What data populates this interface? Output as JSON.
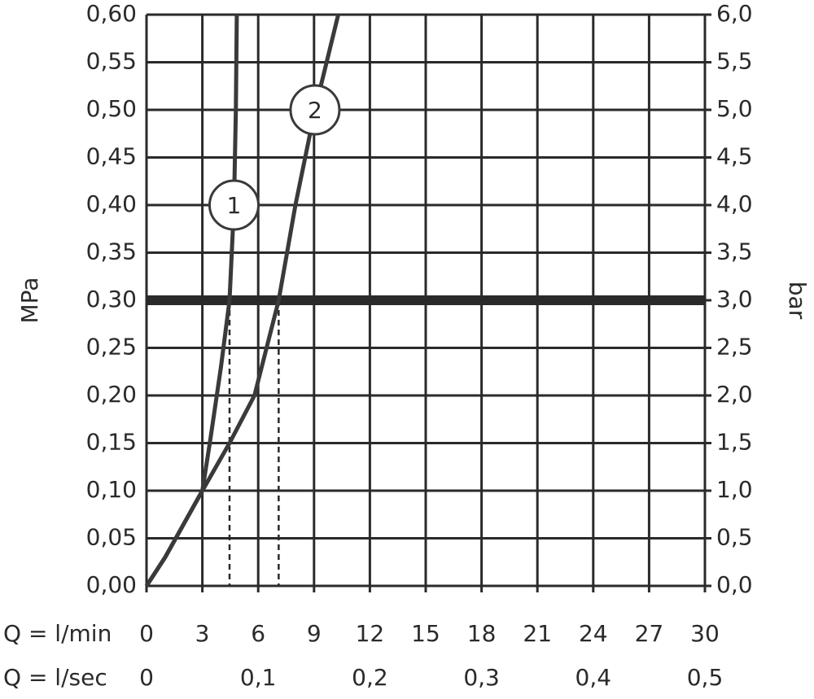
{
  "chart_data": {
    "type": "line",
    "ylabel": "MPa",
    "y2label": "bar",
    "xlabel": "Q = l/min",
    "x2label": "Q = l/sec",
    "xlim": [
      0,
      30
    ],
    "xticks": [
      0,
      3,
      6,
      9,
      12,
      15,
      18,
      21,
      24,
      27,
      30
    ],
    "x2lim": [
      0,
      0.5
    ],
    "x2ticks": [
      0,
      {
        "value": 0.1,
        "label": "0,1"
      },
      {
        "value": 0.2,
        "label": "0,2"
      },
      {
        "value": 0.3,
        "label": "0,3"
      },
      {
        "value": 0.4,
        "label": "0,4"
      },
      {
        "value": 0.5,
        "label": "0,5"
      }
    ],
    "ylim": [
      0,
      0.6
    ],
    "yticks": [
      {
        "value": 0,
        "label": "0,00"
      },
      {
        "value": 0.05,
        "label": "0,05"
      },
      {
        "value": 0.1,
        "label": "0,10"
      },
      {
        "value": 0.15,
        "label": "0,15"
      },
      {
        "value": 0.2,
        "label": "0,20"
      },
      {
        "value": 0.25,
        "label": "0,25"
      },
      {
        "value": 0.3,
        "label": "0,30"
      },
      {
        "value": 0.35,
        "label": "0,35"
      },
      {
        "value": 0.4,
        "label": "0,40"
      },
      {
        "value": 0.45,
        "label": "0,45"
      },
      {
        "value": 0.5,
        "label": "0,50"
      },
      {
        "value": 0.55,
        "label": "0,55"
      },
      {
        "value": 0.6,
        "label": "0,60"
      }
    ],
    "y2lim": [
      0,
      6
    ],
    "y2ticks": [
      {
        "value": 0,
        "label": "0,0"
      },
      {
        "value": 0.5,
        "label": "0,5"
      },
      {
        "value": 1,
        "label": "1,0"
      },
      {
        "value": 1.5,
        "label": "1,5"
      },
      {
        "value": 2,
        "label": "2,0"
      },
      {
        "value": 2.5,
        "label": "2,5"
      },
      {
        "value": 3,
        "label": "3,0"
      },
      {
        "value": 3.5,
        "label": "3,5"
      },
      {
        "value": 4,
        "label": "4,0"
      },
      {
        "value": 4.5,
        "label": "4,5"
      },
      {
        "value": 5,
        "label": "5,0"
      },
      {
        "value": 5.5,
        "label": "5,5"
      },
      {
        "value": 6,
        "label": "6,0"
      }
    ],
    "grid": true,
    "reference_line": 0.3,
    "crossings": [
      4.46,
      7.1
    ],
    "series": [
      {
        "name": "1",
        "color": "#3a3a3a",
        "x": [
          0,
          1,
          2,
          3,
          3.4,
          4.0,
          4.46,
          4.7,
          4.8,
          4.85
        ],
        "values": [
          0,
          0.03,
          0.065,
          0.1,
          0.15,
          0.23,
          0.3,
          0.4,
          0.5,
          0.6
        ]
      },
      {
        "name": "2",
        "color": "#3a3a3a",
        "x": [
          0,
          1,
          2,
          3,
          4.46,
          5.8,
          7.1,
          8.0,
          9.05,
          10.3
        ],
        "values": [
          0,
          0.03,
          0.065,
          0.1,
          0.15,
          0.2,
          0.3,
          0.4,
          0.5,
          0.6
        ]
      }
    ]
  }
}
